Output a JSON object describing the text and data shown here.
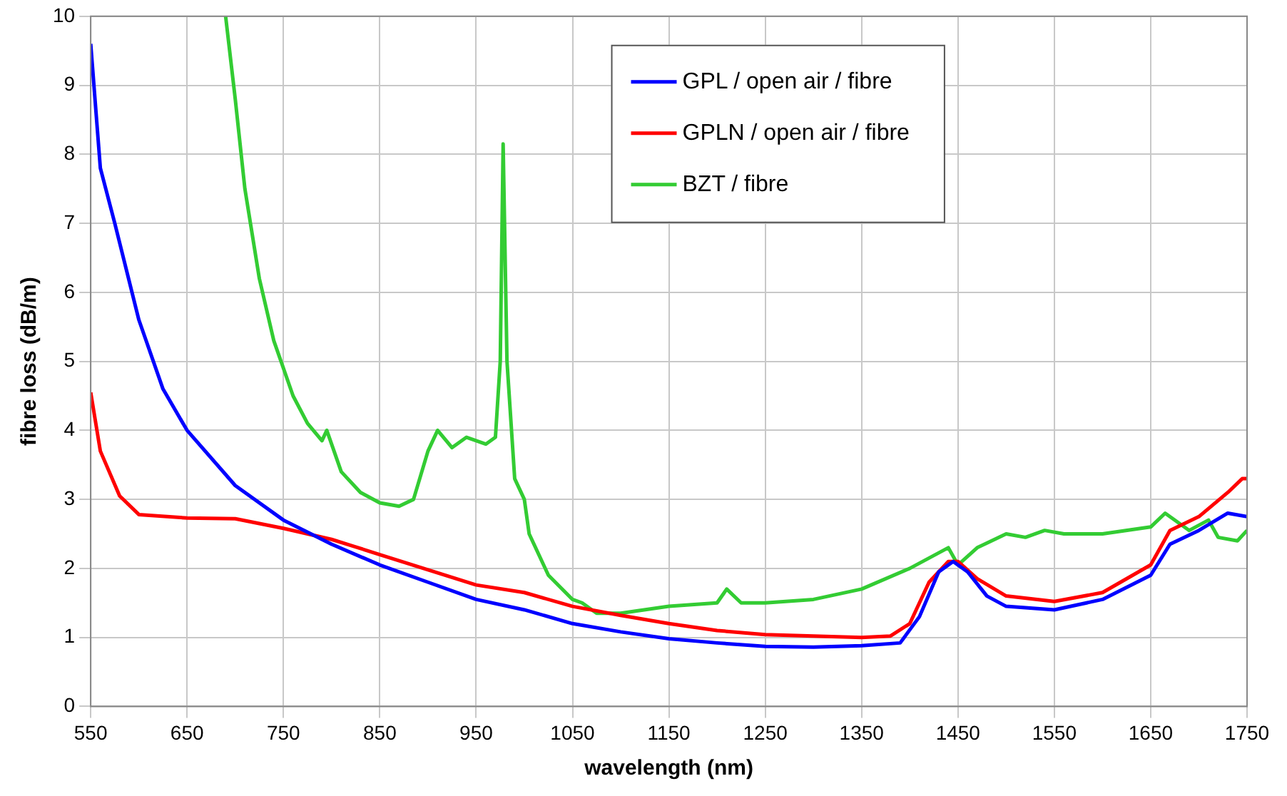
{
  "chart_data": {
    "type": "line",
    "xlabel": "wavelength (nm)",
    "ylabel": "fibre loss (dB/m)",
    "xlim": [
      550,
      1750
    ],
    "xticks": [
      550,
      650,
      750,
      850,
      950,
      1050,
      1150,
      1250,
      1350,
      1450,
      1550,
      1650,
      1750
    ],
    "ylim": [
      0,
      10
    ],
    "yticks": [
      0,
      1,
      2,
      3,
      4,
      5,
      6,
      7,
      8,
      9,
      10
    ],
    "grid": true,
    "legend": "top right",
    "marker": "none",
    "line_style": "solid",
    "series": [
      {
        "name": "GPL / open air / fibre",
        "color": "#0000ff",
        "x": [
          550,
          560,
          575,
          600,
          625,
          650,
          700,
          750,
          800,
          850,
          900,
          950,
          1000,
          1050,
          1100,
          1150,
          1200,
          1250,
          1300,
          1350,
          1390,
          1410,
          1430,
          1445,
          1460,
          1480,
          1500,
          1550,
          1600,
          1650,
          1670,
          1700,
          1730,
          1750
        ],
        "values": [
          9.6,
          7.8,
          7.0,
          5.6,
          4.6,
          4.0,
          3.2,
          2.7,
          2.35,
          2.05,
          1.8,
          1.55,
          1.4,
          1.2,
          1.08,
          0.98,
          0.92,
          0.87,
          0.86,
          0.88,
          0.92,
          1.3,
          1.95,
          2.1,
          1.95,
          1.6,
          1.45,
          1.4,
          1.55,
          1.9,
          2.35,
          2.55,
          2.8,
          2.75
        ]
      },
      {
        "name": "GPLN / open air / fibre",
        "color": "#ff0000",
        "x": [
          550,
          560,
          580,
          600,
          650,
          700,
          750,
          800,
          850,
          900,
          950,
          1000,
          1050,
          1100,
          1150,
          1200,
          1250,
          1300,
          1350,
          1380,
          1400,
          1420,
          1440,
          1450,
          1470,
          1500,
          1550,
          1600,
          1650,
          1670,
          1700,
          1730,
          1745,
          1750
        ],
        "values": [
          4.55,
          3.7,
          3.05,
          2.78,
          2.73,
          2.72,
          2.58,
          2.42,
          2.2,
          1.98,
          1.76,
          1.65,
          1.45,
          1.32,
          1.2,
          1.1,
          1.04,
          1.02,
          1.0,
          1.02,
          1.2,
          1.8,
          2.1,
          2.1,
          1.85,
          1.6,
          1.52,
          1.65,
          2.05,
          2.55,
          2.75,
          3.1,
          3.3,
          3.3
        ]
      },
      {
        "name": "BZT / fibre",
        "color": "#33cc33",
        "x": [
          690,
          700,
          710,
          725,
          740,
          760,
          775,
          790,
          795,
          810,
          830,
          850,
          870,
          885,
          900,
          910,
          925,
          940,
          960,
          970,
          975,
          978,
          982,
          990,
          1000,
          1005,
          1025,
          1050,
          1060,
          1075,
          1100,
          1150,
          1200,
          1210,
          1225,
          1250,
          1300,
          1350,
          1400,
          1440,
          1450,
          1470,
          1500,
          1520,
          1540,
          1560,
          1600,
          1650,
          1665,
          1690,
          1710,
          1720,
          1740,
          1750
        ],
        "values": [
          10,
          8.8,
          7.5,
          6.2,
          5.3,
          4.5,
          4.1,
          3.85,
          4.0,
          3.4,
          3.1,
          2.95,
          2.9,
          3.0,
          3.7,
          4.0,
          3.75,
          3.9,
          3.8,
          3.9,
          5.0,
          8.15,
          5.0,
          3.3,
          3.0,
          2.5,
          1.9,
          1.55,
          1.5,
          1.35,
          1.35,
          1.45,
          1.5,
          1.7,
          1.5,
          1.5,
          1.55,
          1.7,
          2.0,
          2.3,
          2.05,
          2.3,
          2.5,
          2.45,
          2.55,
          2.5,
          2.5,
          2.6,
          2.8,
          2.55,
          2.7,
          2.45,
          2.4,
          2.55
        ]
      }
    ]
  }
}
